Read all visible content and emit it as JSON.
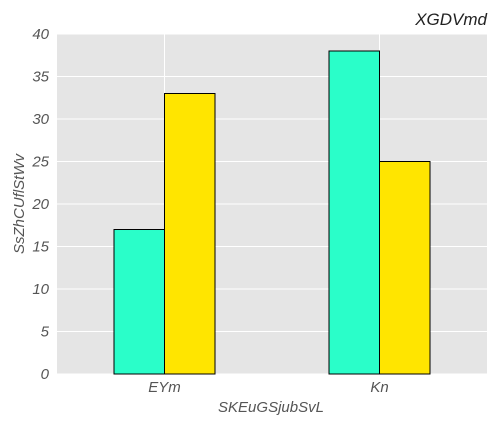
{
  "chart_data": {
    "type": "bar",
    "title": "XGDVmd",
    "xlabel": "SKEuGSjubSvL",
    "ylabel": "SsZhCUflStWv",
    "categories": [
      "EYm",
      "Kn"
    ],
    "series": [
      {
        "values": [
          17,
          38
        ],
        "color": "#2afec9"
      },
      {
        "values": [
          33,
          25
        ],
        "color": "#ffe500"
      }
    ],
    "ylim": [
      0,
      40
    ],
    "yticks": [
      "0",
      "5",
      "10",
      "15",
      "20",
      "25",
      "30",
      "35",
      "40"
    ],
    "grid": true,
    "background": "#e5e5e5",
    "grid_color": "#ffffff"
  }
}
